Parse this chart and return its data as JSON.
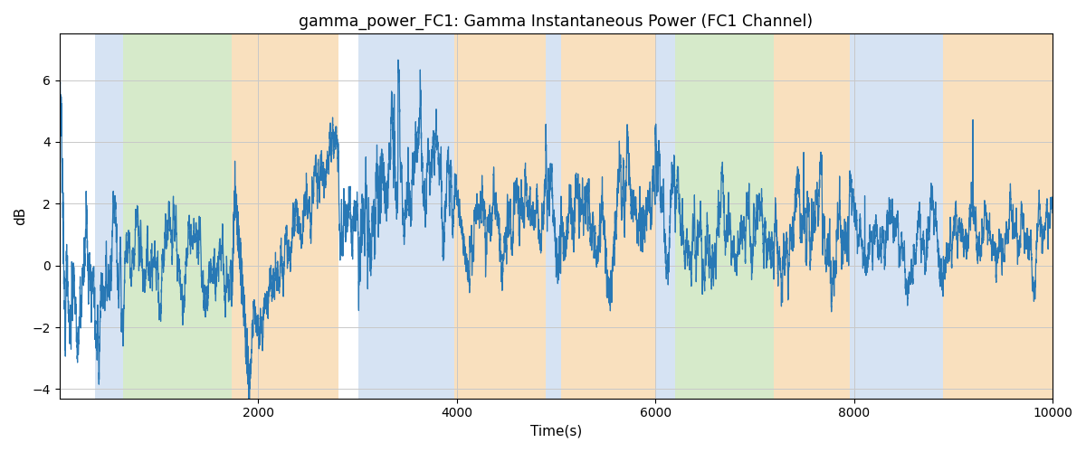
{
  "title": "gamma_power_FC1: Gamma Instantaneous Power (FC1 Channel)",
  "xlabel": "Time(s)",
  "ylabel": "dB",
  "xlim": [
    0,
    10000
  ],
  "ylim": [
    -4.3,
    7.5
  ],
  "yticks": [
    -4,
    -2,
    0,
    2,
    4,
    6
  ],
  "xticks": [
    2000,
    4000,
    6000,
    8000,
    10000
  ],
  "line_color": "#2878b5",
  "line_width": 0.9,
  "bg_blue": {
    "color": "#c5d8ee",
    "alpha": 0.7
  },
  "bg_green": {
    "color": "#b5d9a0",
    "alpha": 0.55
  },
  "bg_orange": {
    "color": "#f5c88a",
    "alpha": 0.55
  },
  "background_regions": [
    {
      "xmin": 357,
      "xmax": 643,
      "type": "blue"
    },
    {
      "xmin": 643,
      "xmax": 1735,
      "type": "green"
    },
    {
      "xmin": 1735,
      "xmax": 2806,
      "type": "orange"
    },
    {
      "xmin": 3010,
      "xmax": 3980,
      "type": "blue"
    },
    {
      "xmin": 3980,
      "xmax": 4898,
      "type": "orange"
    },
    {
      "xmin": 4898,
      "xmax": 5051,
      "type": "blue"
    },
    {
      "xmin": 5051,
      "xmax": 6000,
      "type": "orange"
    },
    {
      "xmin": 6000,
      "xmax": 6204,
      "type": "blue"
    },
    {
      "xmin": 6204,
      "xmax": 7194,
      "type": "green"
    },
    {
      "xmin": 7194,
      "xmax": 7959,
      "type": "orange"
    },
    {
      "xmin": 7959,
      "xmax": 8898,
      "type": "blue"
    },
    {
      "xmin": 8898,
      "xmax": 10000,
      "type": "orange"
    }
  ],
  "figsize": [
    12.0,
    5.0
  ],
  "dpi": 100
}
